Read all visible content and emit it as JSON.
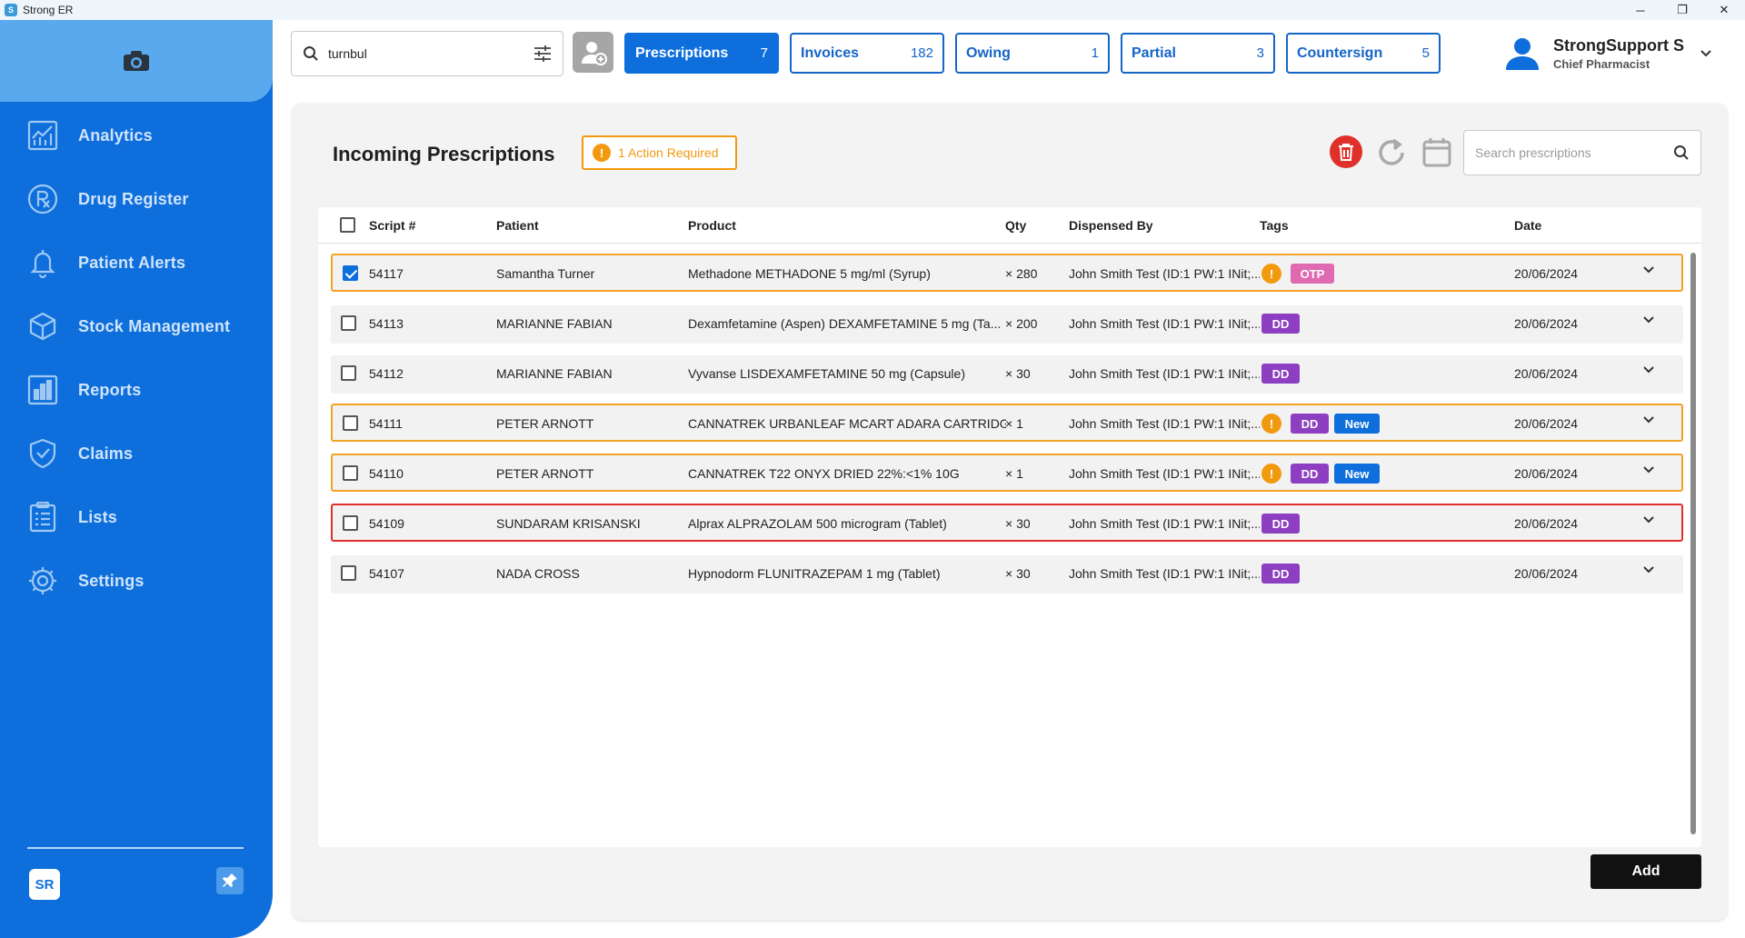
{
  "window": {
    "title": "Strong ER",
    "minimize": "─",
    "maximize": "❐",
    "close": "✕"
  },
  "sidebar": {
    "items": [
      {
        "label": "Analytics",
        "icon": "analytics-icon"
      },
      {
        "label": "Drug Register",
        "icon": "rx-icon"
      },
      {
        "label": "Patient Alerts",
        "icon": "bell-icon"
      },
      {
        "label": "Stock Management",
        "icon": "box-icon"
      },
      {
        "label": "Reports",
        "icon": "bar-chart-icon"
      },
      {
        "label": "Claims",
        "icon": "shield-check-icon"
      },
      {
        "label": "Lists",
        "icon": "list-icon"
      },
      {
        "label": "Settings",
        "icon": "gear-icon"
      }
    ],
    "footer_logo": "SR"
  },
  "search": {
    "value": "turnbul"
  },
  "tabs": [
    {
      "label": "Prescriptions",
      "count": "7"
    },
    {
      "label": "Invoices",
      "count": "182"
    },
    {
      "label": "Owing",
      "count": "1"
    },
    {
      "label": "Partial",
      "count": "3"
    },
    {
      "label": "Countersign",
      "count": "5"
    }
  ],
  "user": {
    "name": "StrongSupport S",
    "role": "Chief Pharmacist"
  },
  "panel": {
    "title": "Incoming Prescriptions",
    "action_badge": "1 Action Required",
    "search_placeholder": "Search prescriptions",
    "add_label": "Add"
  },
  "table": {
    "headers": {
      "script": "Script #",
      "patient": "Patient",
      "product": "Product",
      "qty": "Qty",
      "dispensed_by": "Dispensed By",
      "tags": "Tags",
      "date": "Date"
    },
    "rows": [
      {
        "script": "54117",
        "patient": "Samantha Turner",
        "product": "Methadone METHADONE 5 mg/ml (Syrup)",
        "qty": "× 280",
        "dispensed_by": "John Smith Test (ID:1 PW:1 INit;...",
        "tags": [
          "warning",
          "OTP"
        ],
        "date": "20/06/2024",
        "checked": true,
        "highlight": "warn"
      },
      {
        "script": "54113",
        "patient": "MARIANNE FABIAN",
        "product": "Dexamfetamine (Aspen) DEXAMFETAMINE 5 mg (Ta...",
        "qty": "× 200",
        "dispensed_by": "John Smith Test (ID:1 PW:1 INit;...",
        "tags": [
          "DD"
        ],
        "date": "20/06/2024",
        "checked": false,
        "highlight": "none"
      },
      {
        "script": "54112",
        "patient": "MARIANNE FABIAN",
        "product": "Vyvanse LISDEXAMFETAMINE 50 mg (Capsule)",
        "qty": "× 30",
        "dispensed_by": "John Smith Test (ID:1 PW:1 INit;...",
        "tags": [
          "DD"
        ],
        "date": "20/06/2024",
        "checked": false,
        "highlight": "none"
      },
      {
        "script": "54111",
        "patient": "PETER ARNOTT",
        "product": "CANNATREK URBANLEAF MCART ADARA CARTRIDG...",
        "qty": "× 1",
        "dispensed_by": "John Smith Test (ID:1 PW:1 INit;...",
        "tags": [
          "warning",
          "DD",
          "New"
        ],
        "date": "20/06/2024",
        "checked": false,
        "highlight": "warn"
      },
      {
        "script": "54110",
        "patient": "PETER ARNOTT",
        "product": "CANNATREK T22 ONYX DRIED 22%:<1% 10G",
        "qty": "× 1",
        "dispensed_by": "John Smith Test (ID:1 PW:1 INit;...",
        "tags": [
          "warning",
          "DD",
          "New"
        ],
        "date": "20/06/2024",
        "checked": false,
        "highlight": "warn"
      },
      {
        "script": "54109",
        "patient": "SUNDARAM KRISANSKI",
        "product": "Alprax ALPRAZOLAM 500 microgram (Tablet)",
        "qty": "× 30",
        "dispensed_by": "John Smith Test (ID:1 PW:1 INit;...",
        "tags": [
          "DD"
        ],
        "date": "20/06/2024",
        "checked": false,
        "highlight": "alert"
      },
      {
        "script": "54107",
        "patient": "NADA CROSS",
        "product": "Hypnodorm FLUNITRAZEPAM 1 mg (Tablet)",
        "qty": "× 30",
        "dispensed_by": "John Smith Test (ID:1 PW:1 INit;...",
        "tags": [
          "DD"
        ],
        "date": "20/06/2024",
        "checked": false,
        "highlight": "none"
      }
    ]
  },
  "colors": {
    "sidebar": "#0e6fdc",
    "accent": "#0e6fdc",
    "warning": "#f29a0f",
    "alert": "#e0302b",
    "dd_tag": "#8e3fc1",
    "otp_tag": "#e06ab2"
  }
}
